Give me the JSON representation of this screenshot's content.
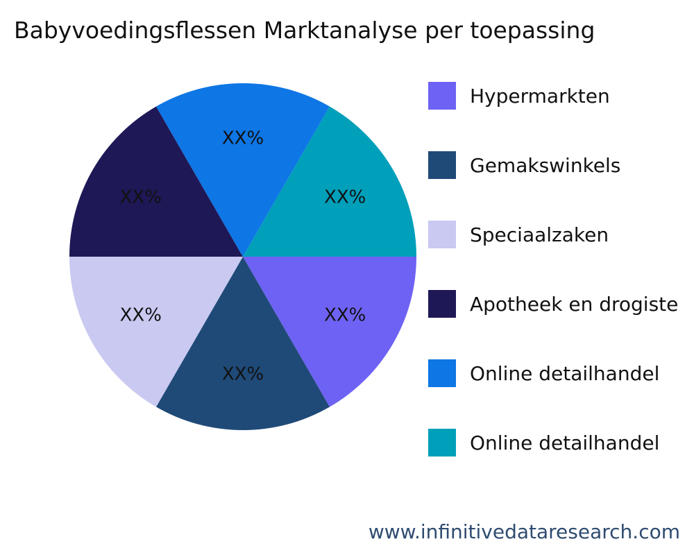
{
  "chart_data": {
    "type": "pie",
    "title": "Babyvoedingsflessen Marktanalyse per toepassing",
    "slices": [
      {
        "label": "Hypermarkten",
        "value": 1,
        "display": "XX%",
        "color": "#6e62f4"
      },
      {
        "label": "Gemakswinkels",
        "value": 1,
        "display": "XX%",
        "color": "#1f4a78"
      },
      {
        "label": "Speciaalzaken",
        "value": 1,
        "display": "XX%",
        "color": "#c9c9f1"
      },
      {
        "label": "Apotheek en drogiste",
        "value": 1,
        "display": "XX%",
        "color": "#1e1856"
      },
      {
        "label": "Online detailhandel",
        "value": 1,
        "display": "XX%",
        "color": "#0e76e5"
      },
      {
        "label": "Online detailhandel",
        "value": 1,
        "display": "XX%",
        "color": "#009fba"
      }
    ],
    "legend_position": "right"
  },
  "footer": {
    "text": "www.infinitivedataresearch.com"
  }
}
